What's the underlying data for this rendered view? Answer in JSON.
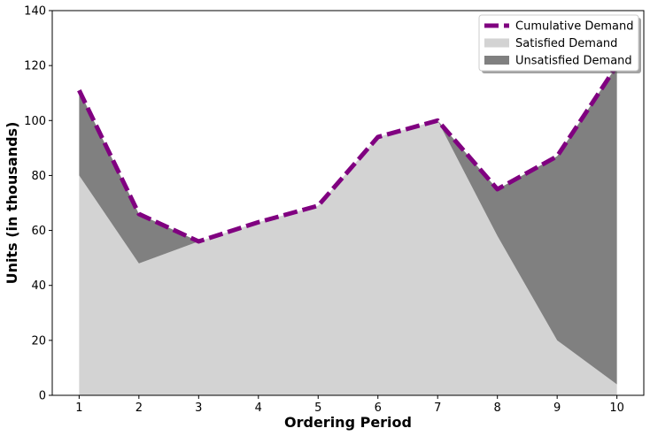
{
  "chart_data": {
    "type": "area",
    "x": [
      1,
      2,
      3,
      4,
      5,
      6,
      7,
      8,
      9,
      10
    ],
    "series": [
      {
        "name": "Cumulative Demand",
        "kind": "line",
        "style": "dashed",
        "color": "#800080",
        "values": [
          111,
          66,
          56,
          63,
          69,
          94,
          100,
          75,
          87,
          120
        ]
      },
      {
        "name": "Satisfied Demand",
        "kind": "area",
        "color": "#d3d3d3",
        "values": [
          80,
          48,
          56,
          63,
          69,
          94,
          100,
          58,
          20,
          4
        ]
      },
      {
        "name": "Unsatisfied Demand",
        "kind": "area",
        "color": "#808080",
        "values": [
          31,
          18,
          0,
          0,
          0,
          0,
          0,
          17,
          67,
          116
        ]
      }
    ],
    "xlabel": "Ordering Period",
    "ylabel": "Units (in thousands)",
    "xticks": [
      "1",
      "2",
      "3",
      "4",
      "5",
      "6",
      "7",
      "8",
      "9",
      "10"
    ],
    "yticks": [
      "0",
      "20",
      "40",
      "60",
      "80",
      "100",
      "120",
      "140"
    ],
    "ylim": [
      0,
      140
    ],
    "xlim": [
      0.55,
      10.45
    ],
    "grid": false,
    "legend_position": "top-right"
  }
}
